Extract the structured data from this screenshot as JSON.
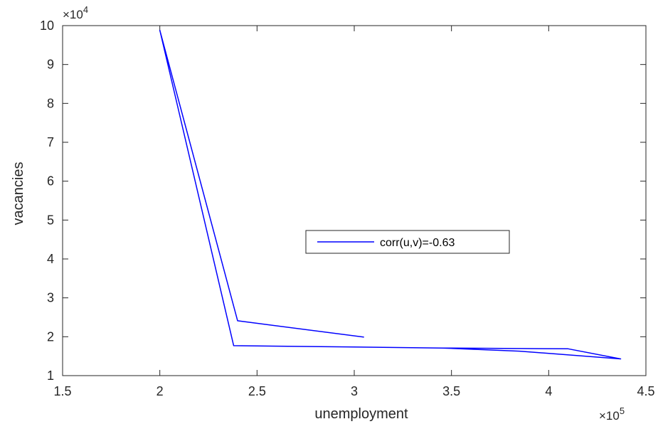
{
  "chart_data": {
    "type": "line",
    "title": "",
    "xlabel": "unemployment",
    "ylabel": "vacancies",
    "xlim": [
      150000,
      450000
    ],
    "ylim": [
      10000,
      100000
    ],
    "x_exponent_label": "×10",
    "x_exponent_power": "5",
    "y_exponent_label": "×10",
    "y_exponent_power": "4",
    "x_ticks": [
      1.5,
      2,
      2.5,
      3,
      3.5,
      4,
      4.5
    ],
    "x_tick_labels": [
      "1.5",
      "2",
      "2.5",
      "3",
      "3.5",
      "4",
      "4.5"
    ],
    "y_ticks": [
      1,
      2,
      3,
      4,
      5,
      6,
      7,
      8,
      9,
      10
    ],
    "y_tick_labels": [
      "1",
      "2",
      "3",
      "4",
      "5",
      "6",
      "7",
      "8",
      "9",
      "10"
    ],
    "grid": false,
    "legend_position": "center-right",
    "series": [
      {
        "name": "corr(u,v)=-0.63",
        "color": "#0000ff",
        "x": [
          200000,
          238000,
          345000,
          410000,
          437000,
          385000,
          345000,
          238000,
          200000,
          240000,
          305000
        ],
        "y": [
          98800,
          17700,
          17100,
          16900,
          14300,
          16300,
          17100,
          17700,
          98800,
          24100,
          19900
        ]
      }
    ]
  }
}
